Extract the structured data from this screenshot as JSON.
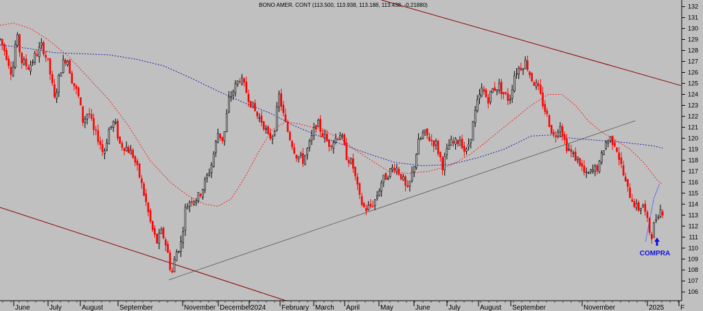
{
  "chart_data": {
    "type": "candlestick",
    "title": "BONO AMER. CONT (113.500, 113.938, 113.188, 113.438, -0.21880)",
    "ylim": [
      105.2,
      132.6
    ],
    "y_ticks": [
      106,
      107,
      108,
      109,
      110,
      111,
      112,
      113,
      114,
      115,
      116,
      117,
      118,
      119,
      120,
      121,
      122,
      123,
      124,
      125,
      126,
      127,
      128,
      129,
      130,
      131,
      132
    ],
    "month_labels": [
      "June",
      "July",
      "August",
      "September",
      "November",
      "December",
      "2024",
      "February",
      "March",
      "April",
      "May",
      "June",
      "July",
      "August",
      "September",
      "November",
      "2025",
      "F"
    ],
    "annotation": {
      "text": "COMPRA",
      "arrow": "up",
      "x": 0.934,
      "y": 110.5
    },
    "colors": {
      "background": "#c0c0c0",
      "up": "#000000",
      "down": "#ff0000",
      "ma_fast": "#ff2020",
      "ma_slow": "#2020b0",
      "channel": "#8b0000",
      "trend": "#555555",
      "note": "#1010e0"
    },
    "price_path": [
      [
        0.0,
        129.0
      ],
      [
        0.01,
        127.5
      ],
      [
        0.018,
        125.8
      ],
      [
        0.024,
        129.5
      ],
      [
        0.032,
        127.0
      ],
      [
        0.042,
        126.5
      ],
      [
        0.052,
        127.5
      ],
      [
        0.062,
        128.5
      ],
      [
        0.072,
        126.5
      ],
      [
        0.08,
        123.5
      ],
      [
        0.09,
        126.5
      ],
      [
        0.098,
        127.5
      ],
      [
        0.105,
        125.5
      ],
      [
        0.115,
        123.8
      ],
      [
        0.122,
        121.5
      ],
      [
        0.13,
        122.5
      ],
      [
        0.138,
        120.5
      ],
      [
        0.145,
        120.0
      ],
      [
        0.152,
        118.5
      ],
      [
        0.16,
        120.8
      ],
      [
        0.168,
        121.5
      ],
      [
        0.176,
        119.5
      ],
      [
        0.185,
        119.2
      ],
      [
        0.195,
        118.5
      ],
      [
        0.205,
        116.5
      ],
      [
        0.213,
        114.5
      ],
      [
        0.222,
        112.0
      ],
      [
        0.23,
        110.5
      ],
      [
        0.238,
        111.5
      ],
      [
        0.245,
        110.0
      ],
      [
        0.252,
        107.5
      ],
      [
        0.258,
        109.5
      ],
      [
        0.266,
        110.5
      ],
      [
        0.272,
        113.5
      ],
      [
        0.28,
        114.5
      ],
      [
        0.29,
        114.5
      ],
      [
        0.3,
        115.8
      ],
      [
        0.31,
        117.5
      ],
      [
        0.32,
        120.5
      ],
      [
        0.328,
        119.8
      ],
      [
        0.336,
        123.5
      ],
      [
        0.344,
        124.5
      ],
      [
        0.352,
        125.5
      ],
      [
        0.36,
        124.5
      ],
      [
        0.37,
        123.0
      ],
      [
        0.378,
        122.0
      ],
      [
        0.386,
        121.5
      ],
      [
        0.394,
        120.0
      ],
      [
        0.402,
        120.5
      ],
      [
        0.41,
        124.0
      ],
      [
        0.418,
        121.5
      ],
      [
        0.426,
        120.0
      ],
      [
        0.435,
        118.5
      ],
      [
        0.445,
        118.0
      ],
      [
        0.455,
        119.5
      ],
      [
        0.465,
        121.5
      ],
      [
        0.473,
        120.5
      ],
      [
        0.482,
        119.5
      ],
      [
        0.49,
        119.8
      ],
      [
        0.5,
        120.5
      ],
      [
        0.508,
        118.5
      ],
      [
        0.518,
        117.5
      ],
      [
        0.528,
        114.5
      ],
      [
        0.536,
        113.5
      ],
      [
        0.544,
        113.8
      ],
      [
        0.552,
        114.5
      ],
      [
        0.56,
        116.0
      ],
      [
        0.57,
        116.8
      ],
      [
        0.58,
        117.5
      ],
      [
        0.59,
        116.5
      ],
      [
        0.598,
        115.0
      ],
      [
        0.606,
        117.0
      ],
      [
        0.614,
        119.5
      ],
      [
        0.622,
        120.5
      ],
      [
        0.63,
        120.0
      ],
      [
        0.64,
        119.5
      ],
      [
        0.65,
        117.5
      ],
      [
        0.66,
        119.5
      ],
      [
        0.668,
        119.5
      ],
      [
        0.676,
        120.0
      ],
      [
        0.684,
        118.5
      ],
      [
        0.692,
        120.5
      ],
      [
        0.7,
        123.0
      ],
      [
        0.708,
        124.5
      ],
      [
        0.716,
        123.5
      ],
      [
        0.724,
        124.5
      ],
      [
        0.732,
        124.8
      ],
      [
        0.74,
        124.0
      ],
      [
        0.748,
        123.5
      ],
      [
        0.756,
        126.0
      ],
      [
        0.764,
        126.5
      ],
      [
        0.772,
        127.0
      ],
      [
        0.78,
        125.5
      ],
      [
        0.79,
        124.5
      ],
      [
        0.798,
        123.0
      ],
      [
        0.806,
        121.5
      ],
      [
        0.814,
        120.0
      ],
      [
        0.822,
        121.5
      ],
      [
        0.83,
        119.5
      ],
      [
        0.84,
        118.5
      ],
      [
        0.85,
        118.0
      ],
      [
        0.86,
        116.5
      ],
      [
        0.87,
        117.0
      ],
      [
        0.88,
        117.5
      ],
      [
        0.888,
        119.5
      ],
      [
        0.896,
        120.0
      ],
      [
        0.904,
        119.5
      ],
      [
        0.912,
        117.5
      ],
      [
        0.92,
        115.5
      ],
      [
        0.928,
        114.5
      ],
      [
        0.936,
        113.5
      ],
      [
        0.944,
        114.0
      ],
      [
        0.95,
        112.5
      ],
      [
        0.956,
        111.0
      ],
      [
        0.962,
        112.5
      ],
      [
        0.968,
        113.5
      ],
      [
        0.973,
        113.4
      ]
    ],
    "ma_fast_path": [
      [
        0.0,
        130.3
      ],
      [
        0.02,
        130.5
      ],
      [
        0.045,
        130.0
      ],
      [
        0.07,
        129.0
      ],
      [
        0.1,
        127.5
      ],
      [
        0.13,
        125.5
      ],
      [
        0.16,
        123.5
      ],
      [
        0.19,
        121.0
      ],
      [
        0.22,
        118.0
      ],
      [
        0.25,
        116.0
      ],
      [
        0.275,
        114.8
      ],
      [
        0.3,
        114.0
      ],
      [
        0.32,
        113.8
      ],
      [
        0.34,
        114.5
      ],
      [
        0.36,
        116.5
      ],
      [
        0.38,
        118.8
      ],
      [
        0.4,
        120.8
      ],
      [
        0.42,
        121.5
      ],
      [
        0.44,
        121.3
      ],
      [
        0.47,
        120.8
      ],
      [
        0.5,
        120.0
      ],
      [
        0.52,
        119.0
      ],
      [
        0.545,
        118.0
      ],
      [
        0.57,
        117.0
      ],
      [
        0.6,
        116.8
      ],
      [
        0.63,
        117.0
      ],
      [
        0.66,
        117.5
      ],
      [
        0.69,
        118.5
      ],
      [
        0.72,
        120.0
      ],
      [
        0.75,
        121.5
      ],
      [
        0.78,
        123.0
      ],
      [
        0.805,
        124.0
      ],
      [
        0.825,
        124.0
      ],
      [
        0.845,
        123.0
      ],
      [
        0.865,
        121.5
      ],
      [
        0.885,
        120.5
      ],
      [
        0.905,
        119.8
      ],
      [
        0.925,
        119.0
      ],
      [
        0.945,
        117.8
      ],
      [
        0.965,
        116.2
      ],
      [
        0.973,
        115.8
      ]
    ],
    "ma_slow_path": [
      [
        0.0,
        128.5
      ],
      [
        0.04,
        128.2
      ],
      [
        0.08,
        127.8
      ],
      [
        0.12,
        127.7
      ],
      [
        0.16,
        127.6
      ],
      [
        0.2,
        127.2
      ],
      [
        0.24,
        126.6
      ],
      [
        0.28,
        125.5
      ],
      [
        0.32,
        124.3
      ],
      [
        0.36,
        123.2
      ],
      [
        0.4,
        122.2
      ],
      [
        0.43,
        121.2
      ],
      [
        0.46,
        120.4
      ],
      [
        0.5,
        119.5
      ],
      [
        0.54,
        118.6
      ],
      [
        0.58,
        117.8
      ],
      [
        0.62,
        117.5
      ],
      [
        0.66,
        117.6
      ],
      [
        0.7,
        118.2
      ],
      [
        0.74,
        119.0
      ],
      [
        0.78,
        120.2
      ],
      [
        0.81,
        120.3
      ],
      [
        0.84,
        120.0
      ],
      [
        0.88,
        119.8
      ],
      [
        0.92,
        119.6
      ],
      [
        0.96,
        119.3
      ],
      [
        0.973,
        119.1
      ]
    ],
    "trend_line": [
      [
        0.248,
        107.1
      ],
      [
        0.933,
        121.6
      ]
    ],
    "channel_upper": [
      [
        0.56,
        132.6
      ],
      [
        1.0,
        124.8
      ]
    ],
    "channel_lower": [
      [
        0.0,
        113.7
      ],
      [
        0.42,
        105.2
      ]
    ],
    "forecast_line": [
      [
        0.948,
        110.6
      ],
      [
        0.948,
        110.6
      ],
      [
        0.96,
        114.5
      ],
      [
        0.968,
        115.8
      ]
    ]
  }
}
